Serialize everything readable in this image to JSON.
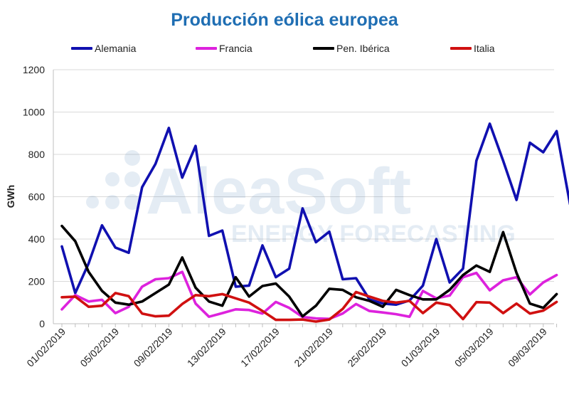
{
  "title": "Producción eólica europea",
  "watermark": {
    "brand": "AleaSoft",
    "tagline": "ENERGY FORECASTING"
  },
  "chart_data": {
    "type": "line",
    "title": "Producción eólica europea",
    "xlabel": "",
    "ylabel": "GWh",
    "ylim": [
      0,
      1200
    ],
    "yticks": [
      0,
      200,
      400,
      600,
      800,
      1000,
      1200
    ],
    "xtick_labels": [
      "01/02/2019",
      "05/02/2019",
      "09/02/2019",
      "13/02/2019",
      "17/02/2019",
      "21/02/2019",
      "25/02/2019",
      "01/03/2019",
      "05/03/2019",
      "09/03/2019"
    ],
    "grid": true,
    "legend": "top",
    "x": [
      "01/02/2019",
      "02/02/2019",
      "03/02/2019",
      "04/02/2019",
      "05/02/2019",
      "06/02/2019",
      "07/02/2019",
      "08/02/2019",
      "09/02/2019",
      "10/02/2019",
      "11/02/2019",
      "12/02/2019",
      "13/02/2019",
      "14/02/2019",
      "15/02/2019",
      "16/02/2019",
      "17/02/2019",
      "18/02/2019",
      "19/02/2019",
      "20/02/2019",
      "21/02/2019",
      "22/02/2019",
      "23/02/2019",
      "24/02/2019",
      "25/02/2019",
      "26/02/2019",
      "27/02/2019",
      "28/02/2019",
      "01/03/2019",
      "02/03/2019",
      "03/03/2019",
      "04/03/2019",
      "05/03/2019",
      "06/03/2019",
      "07/03/2019",
      "08/03/2019",
      "09/03/2019",
      "10/03/2019",
      "11/03/2019"
    ],
    "series": [
      {
        "name": "Alemania",
        "color": "#1010b0",
        "values": [
          365,
          145,
          285,
          465,
          360,
          335,
          645,
          755,
          925,
          690,
          840,
          415,
          440,
          175,
          180,
          370,
          220,
          260,
          545,
          385,
          435,
          210,
          215,
          115,
          95,
          90,
          110,
          180,
          400,
          195,
          260,
          770,
          945,
          770,
          585,
          855,
          810,
          910,
          565
        ]
      },
      {
        "name": "Francia",
        "color": "#dd22dd",
        "values": [
          68,
          135,
          105,
          113,
          50,
          80,
          175,
          210,
          215,
          245,
          95,
          33,
          50,
          68,
          65,
          48,
          103,
          75,
          32,
          25,
          23,
          48,
          93,
          60,
          53,
          45,
          33,
          155,
          120,
          133,
          220,
          240,
          158,
          205,
          220,
          138,
          195,
          230,
          null
        ]
      },
      {
        "name": "Pen. Ibérica",
        "color": "#000000",
        "values": [
          462,
          390,
          245,
          155,
          100,
          90,
          105,
          145,
          185,
          313,
          170,
          105,
          85,
          220,
          128,
          178,
          190,
          128,
          35,
          85,
          165,
          160,
          125,
          108,
          80,
          160,
          135,
          115,
          115,
          160,
          230,
          275,
          245,
          433,
          240,
          95,
          75,
          140,
          null
        ]
      },
      {
        "name": "Italia",
        "color": "#d01010",
        "values": [
          125,
          128,
          80,
          85,
          145,
          130,
          48,
          35,
          38,
          93,
          135,
          130,
          140,
          120,
          100,
          60,
          18,
          18,
          20,
          10,
          20,
          70,
          150,
          128,
          108,
          100,
          108,
          50,
          100,
          88,
          22,
          102,
          100,
          50,
          95,
          48,
          62,
          103,
          null
        ]
      }
    ]
  }
}
